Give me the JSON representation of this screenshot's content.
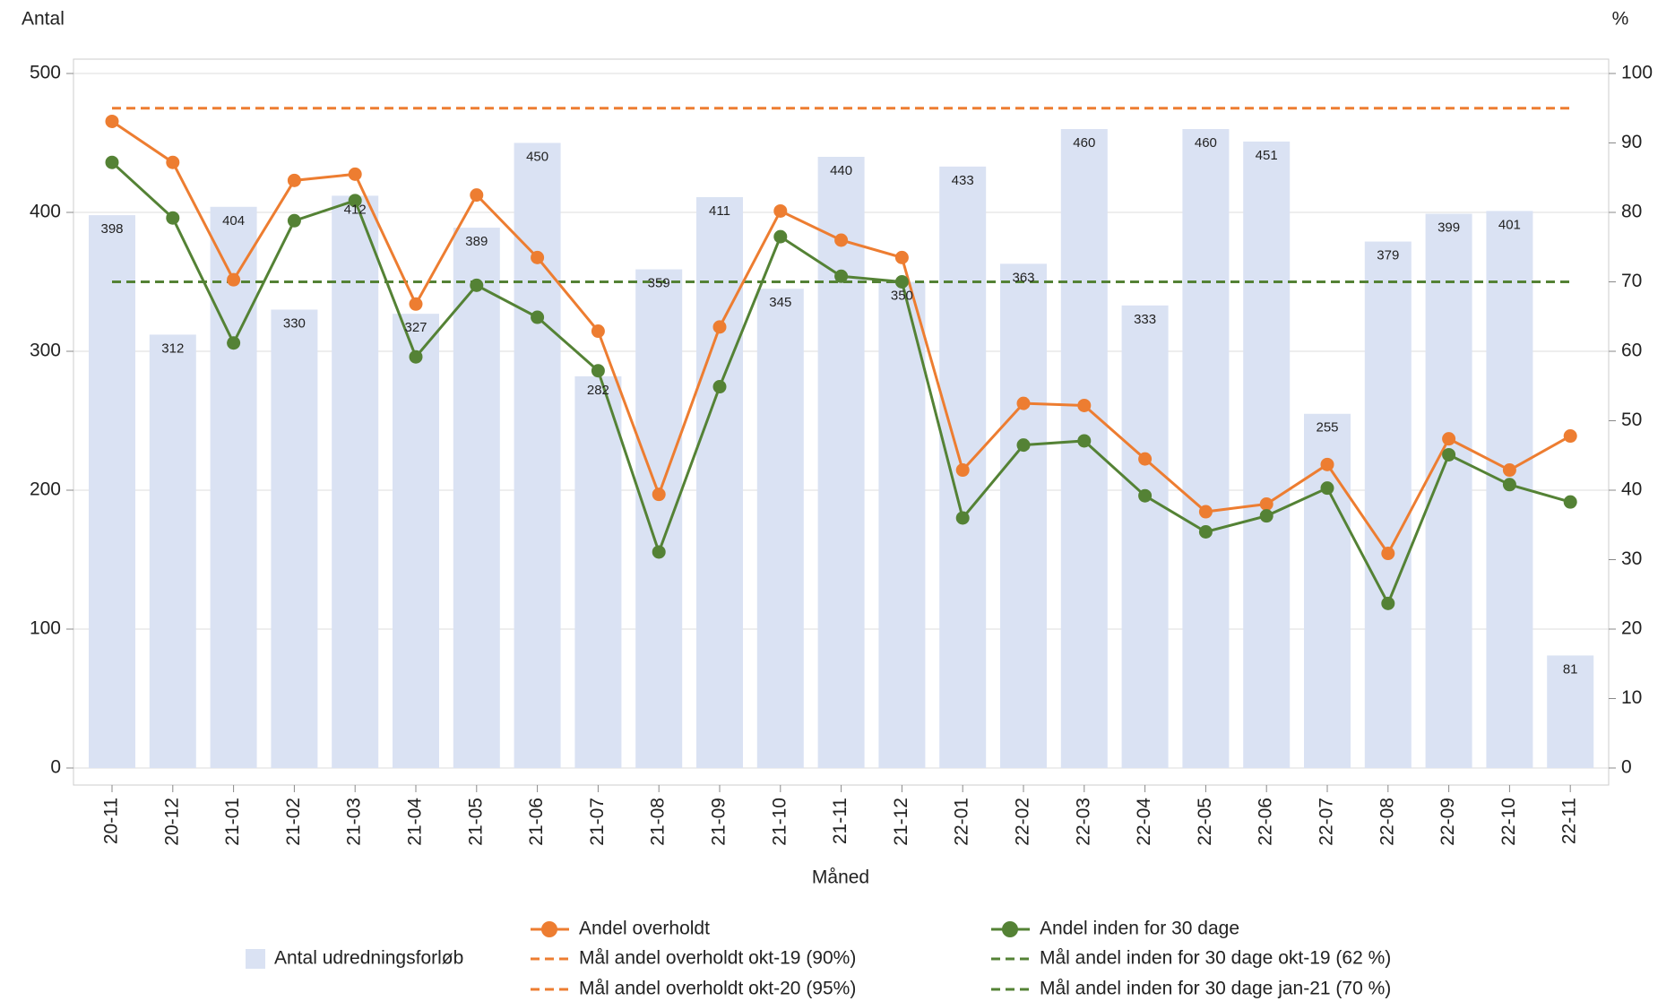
{
  "chart_data": {
    "type": "bar-line",
    "ylabel": "Antal",
    "y2label": "%",
    "xlabel": "Måned",
    "categories": [
      "20-11",
      "20-12",
      "21-01",
      "21-02",
      "21-03",
      "21-04",
      "21-05",
      "21-06",
      "21-07",
      "21-08",
      "21-09",
      "21-10",
      "21-11",
      "21-12",
      "22-01",
      "22-02",
      "22-03",
      "22-04",
      "22-05",
      "22-06",
      "22-07",
      "22-08",
      "22-09",
      "22-10",
      "22-11"
    ],
    "ylim": [
      0,
      500
    ],
    "yticks": [
      0,
      100,
      200,
      300,
      400,
      500
    ],
    "y2lim": [
      0,
      100
    ],
    "y2ticks": [
      0,
      10,
      20,
      30,
      40,
      50,
      60,
      70,
      80,
      90,
      100
    ],
    "grid": true,
    "series": [
      {
        "name": "Antal udredningsforløb",
        "kind": "bar",
        "color": "#dae2f3",
        "axis": "y",
        "values": [
          398,
          312,
          404,
          330,
          412,
          327,
          389,
          450,
          282,
          359,
          411,
          345,
          440,
          350,
          433,
          363,
          460,
          333,
          460,
          451,
          255,
          379,
          399,
          401,
          81
        ]
      },
      {
        "name": "Andel overholdt",
        "kind": "line",
        "color": "#ed7d31",
        "axis": "y2",
        "values": [
          93.1,
          87.2,
          70.3,
          84.6,
          85.5,
          66.8,
          82.5,
          73.5,
          62.9,
          39.4,
          63.5,
          80.2,
          76,
          73.5,
          42.9,
          52.5,
          52.2,
          44.5,
          36.9,
          38,
          43.7,
          30.9,
          47.4,
          42.9,
          47.8
        ]
      },
      {
        "name": "Andel inden for 30 dage",
        "kind": "line",
        "color": "#548235",
        "axis": "y2",
        "values": [
          87.2,
          79.2,
          61.2,
          78.8,
          81.7,
          59.2,
          69.5,
          64.9,
          57.2,
          31.1,
          54.9,
          76.5,
          70.8,
          70,
          36,
          46.5,
          47.1,
          39.2,
          34,
          36.3,
          40.3,
          23.7,
          45.1,
          40.8,
          38.3
        ]
      },
      {
        "name": "Mål andel overholdt okt-19 (90%)",
        "kind": "dashed",
        "color": "#ed7d31",
        "axis": "y2",
        "values": [
          null,
          null,
          null,
          null,
          null,
          null,
          null,
          null,
          null,
          null,
          null,
          null,
          null,
          null,
          null,
          null,
          null,
          null,
          null,
          null,
          null,
          null,
          null,
          null,
          null
        ]
      },
      {
        "name": "Mål andel overholdt okt-20 (95%)",
        "kind": "dashed",
        "color": "#ed7d31",
        "axis": "y2",
        "values": [
          95,
          95,
          95,
          95,
          95,
          95,
          95,
          95,
          95,
          95,
          95,
          95,
          95,
          95,
          95,
          95,
          95,
          95,
          95,
          95,
          95,
          95,
          95,
          95,
          95
        ]
      },
      {
        "name": "Mål andel inden for 30 dage okt-19 (62 %)",
        "kind": "dashed",
        "color": "#548235",
        "axis": "y2",
        "values": [
          null,
          null,
          null,
          null,
          null,
          null,
          null,
          null,
          null,
          null,
          null,
          null,
          null,
          null,
          null,
          null,
          null,
          null,
          null,
          null,
          null,
          null,
          null,
          null,
          null
        ]
      },
      {
        "name": "Mål andel inden for 30 dage jan-21 (70 %)",
        "kind": "dashed",
        "color": "#548235",
        "axis": "y2",
        "values": [
          70,
          70,
          70,
          70,
          70,
          70,
          70,
          70,
          70,
          70,
          70,
          70,
          70,
          70,
          70,
          70,
          70,
          70,
          70,
          70,
          70,
          70,
          70,
          70,
          70
        ]
      }
    ]
  }
}
